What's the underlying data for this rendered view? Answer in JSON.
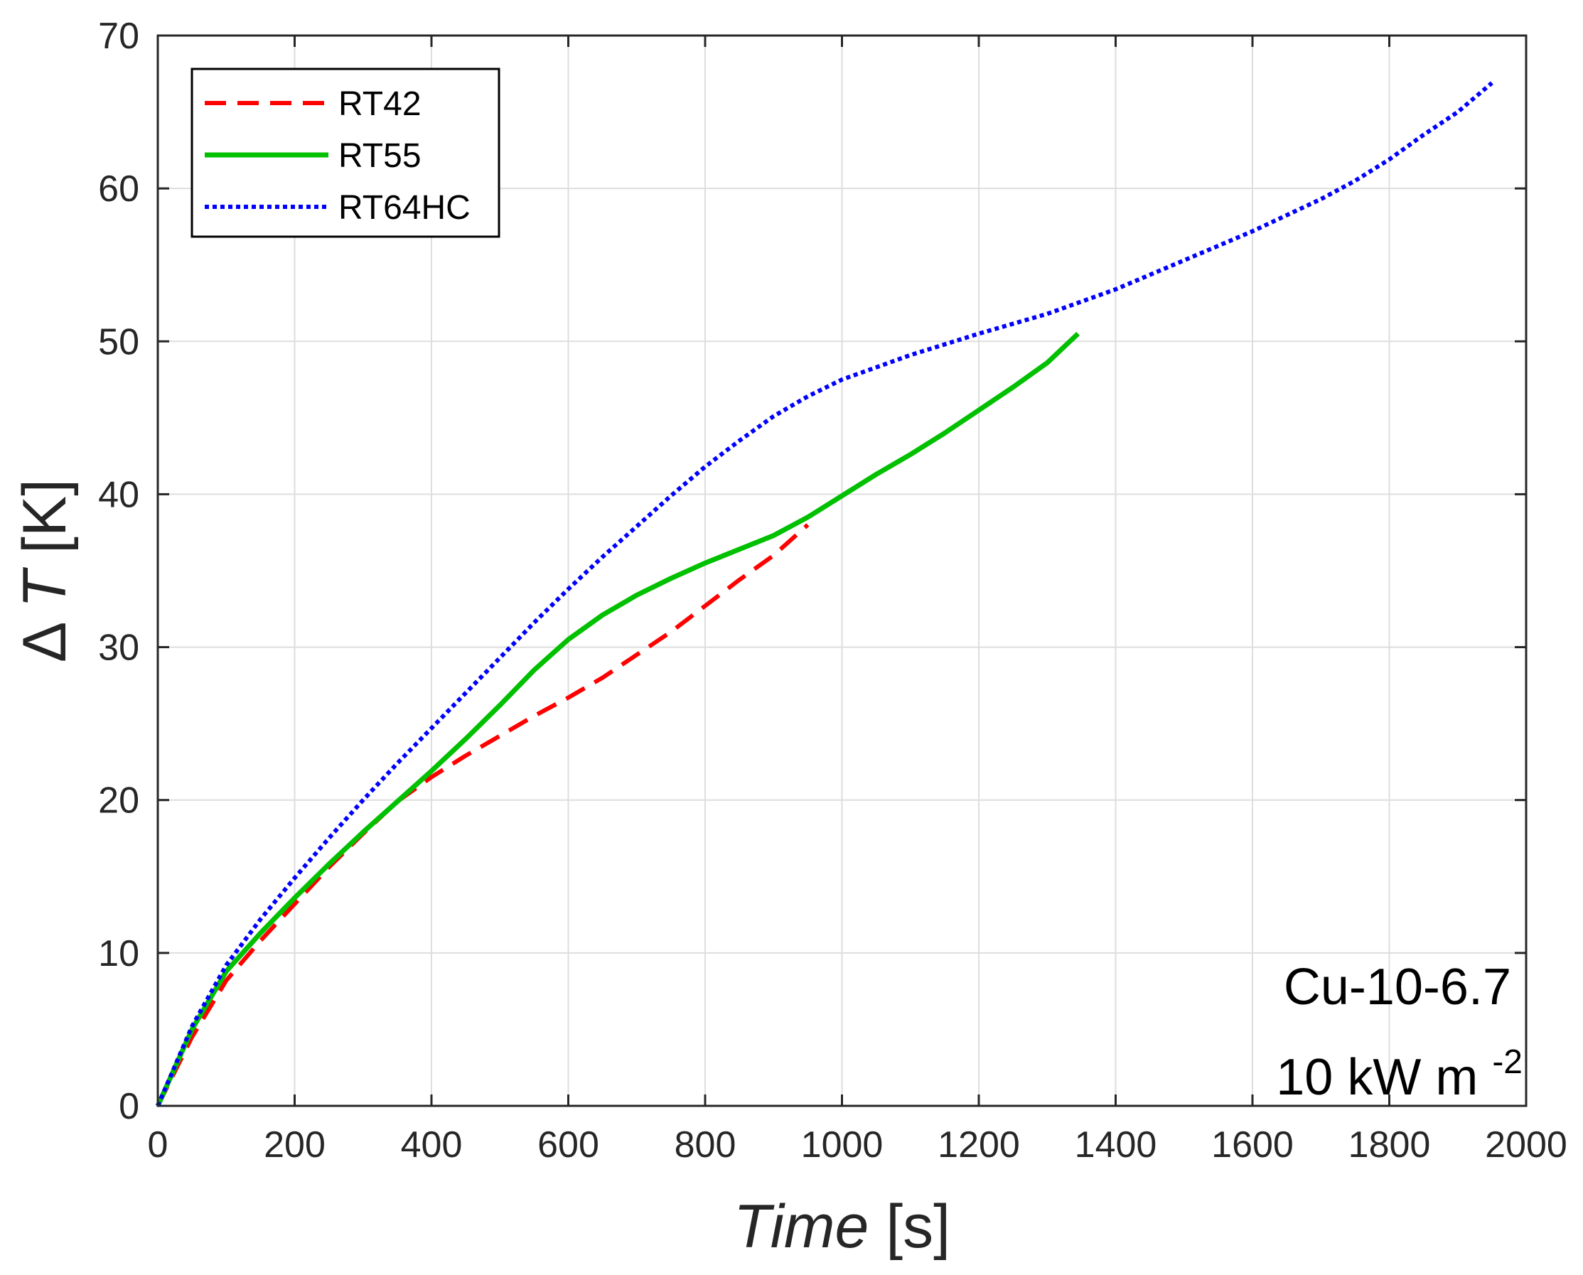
{
  "chart_data": {
    "type": "line",
    "title": "",
    "xlabel": "Time",
    "xlabel_unit": "[s]",
    "ylabel_symbol": "Δ",
    "ylabel_var": "T",
    "ylabel_unit": "[K]",
    "xlim": [
      0,
      2000
    ],
    "ylim": [
      0,
      70
    ],
    "xticks": [
      0,
      200,
      400,
      600,
      800,
      1000,
      1200,
      1400,
      1600,
      1800,
      2000
    ],
    "yticks": [
      0,
      10,
      20,
      30,
      40,
      50,
      60,
      70
    ],
    "grid": true,
    "legend_position": "top-left",
    "annotation_line1": "Cu-10-6.7",
    "annotation_line2": "10 kW m",
    "annotation_sup": "-2",
    "series": [
      {
        "name": "RT42",
        "color": "#ff0000",
        "style": "dashed",
        "x": [
          0,
          50,
          100,
          150,
          200,
          250,
          300,
          350,
          400,
          450,
          500,
          550,
          600,
          650,
          700,
          750,
          800,
          850,
          900,
          950
        ],
        "y": [
          0,
          4.5,
          8.2,
          10.8,
          13.2,
          15.6,
          17.8,
          19.9,
          21.5,
          22.9,
          24.2,
          25.5,
          26.7,
          28.0,
          29.5,
          31.0,
          32.7,
          34.4,
          36.0,
          38.0
        ]
      },
      {
        "name": "RT55",
        "color": "#00c000",
        "style": "solid",
        "x": [
          0,
          50,
          100,
          150,
          200,
          250,
          300,
          350,
          400,
          450,
          500,
          550,
          600,
          650,
          700,
          750,
          800,
          850,
          900,
          950,
          1000,
          1050,
          1100,
          1150,
          1200,
          1250,
          1300,
          1345
        ],
        "y": [
          0,
          5.0,
          8.8,
          11.3,
          13.6,
          15.8,
          17.9,
          19.9,
          21.9,
          24.0,
          26.2,
          28.5,
          30.5,
          32.1,
          33.4,
          34.5,
          35.5,
          36.4,
          37.3,
          38.5,
          39.9,
          41.3,
          42.6,
          44.0,
          45.5,
          47.0,
          48.6,
          50.5
        ]
      },
      {
        "name": "RT64HC",
        "color": "#0000ff",
        "style": "dotted",
        "x": [
          0,
          50,
          100,
          150,
          200,
          250,
          300,
          350,
          400,
          450,
          500,
          550,
          600,
          650,
          700,
          750,
          800,
          850,
          900,
          950,
          1000,
          1050,
          1100,
          1150,
          1200,
          1300,
          1400,
          1500,
          1600,
          1700,
          1750,
          1800,
          1850,
          1900,
          1950
        ],
        "y": [
          0,
          5.2,
          9.2,
          12.2,
          14.9,
          17.5,
          20.0,
          22.4,
          24.7,
          27.0,
          29.3,
          31.6,
          33.8,
          35.9,
          37.9,
          39.9,
          41.8,
          43.5,
          45.1,
          46.4,
          47.5,
          48.3,
          49.1,
          49.8,
          50.5,
          51.8,
          53.4,
          55.3,
          57.2,
          59.3,
          60.5,
          61.9,
          63.5,
          65.0,
          66.9
        ]
      }
    ]
  }
}
